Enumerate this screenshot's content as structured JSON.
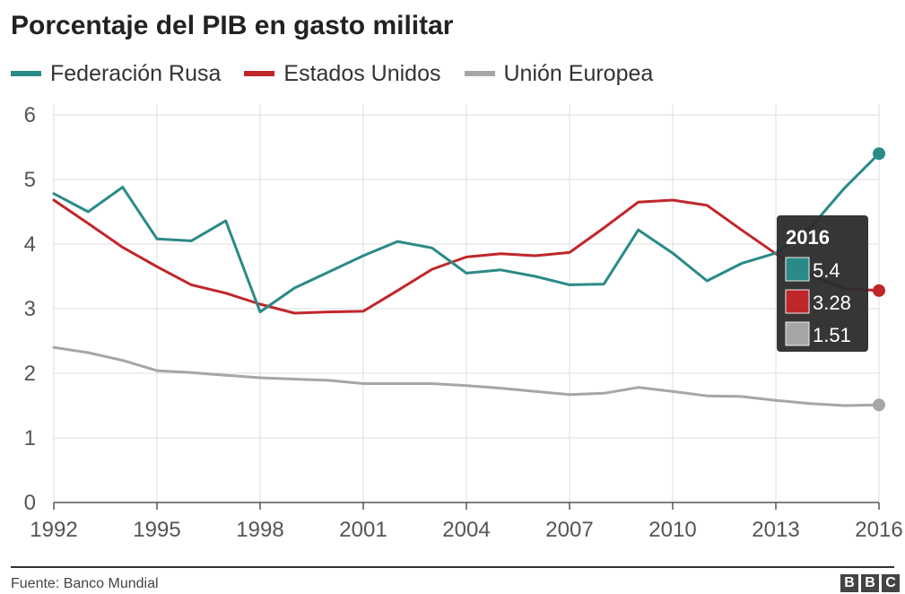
{
  "page": {
    "title": "Porcentaje del PIB en gasto militar",
    "source": "Fuente: Banco Mundial",
    "logo_letters": [
      "B",
      "B",
      "C"
    ]
  },
  "colors": {
    "russia": "#2a8a87",
    "usa": "#c0262a",
    "eu": "#a6a6a6",
    "grid": "#dcdcdc",
    "axis": "#555555",
    "tooltip_bg": "#2b2b2b"
  },
  "chart_data": {
    "type": "line",
    "title": "Porcentaje del PIB en gasto militar",
    "xlabel": "",
    "ylabel": "",
    "ylim": [
      0,
      6
    ],
    "xlim": [
      1992,
      2016
    ],
    "xticks": [
      1992,
      1995,
      1998,
      2001,
      2004,
      2007,
      2010,
      2013,
      2016
    ],
    "yticks": [
      0,
      1,
      2,
      3,
      4,
      5,
      6
    ],
    "grid": true,
    "legend_position": "top-left",
    "x": [
      1992,
      1993,
      1994,
      1995,
      1996,
      1997,
      1998,
      1999,
      2000,
      2001,
      2002,
      2003,
      2004,
      2005,
      2006,
      2007,
      2008,
      2009,
      2010,
      2011,
      2012,
      2013,
      2014,
      2015,
      2016
    ],
    "series": [
      {
        "name": "Federación Rusa",
        "color": "#2a8a87",
        "values": [
          4.78,
          4.5,
          4.88,
          4.08,
          4.05,
          4.36,
          2.95,
          3.32,
          3.57,
          3.82,
          4.04,
          3.94,
          3.55,
          3.6,
          3.5,
          3.37,
          3.38,
          4.22,
          3.86,
          3.43,
          3.7,
          3.86,
          4.25,
          4.87,
          5.4
        ]
      },
      {
        "name": "Estados Unidos",
        "color": "#c0262a",
        "values": [
          4.68,
          4.32,
          3.95,
          3.65,
          3.37,
          3.24,
          3.07,
          2.93,
          2.95,
          2.96,
          3.28,
          3.61,
          3.8,
          3.85,
          3.82,
          3.87,
          4.25,
          4.65,
          4.68,
          4.6,
          4.22,
          3.85,
          3.52,
          3.31,
          3.28
        ]
      },
      {
        "name": "Unión Europea",
        "color": "#a6a6a6",
        "values": [
          2.4,
          2.32,
          2.2,
          2.04,
          2.01,
          1.97,
          1.93,
          1.91,
          1.89,
          1.84,
          1.84,
          1.84,
          1.81,
          1.77,
          1.72,
          1.67,
          1.69,
          1.78,
          1.72,
          1.65,
          1.64,
          1.58,
          1.53,
          1.5,
          1.51
        ]
      }
    ],
    "tooltip": {
      "year": "2016",
      "values": [
        "5.4",
        "3.28",
        "1.51"
      ]
    }
  }
}
